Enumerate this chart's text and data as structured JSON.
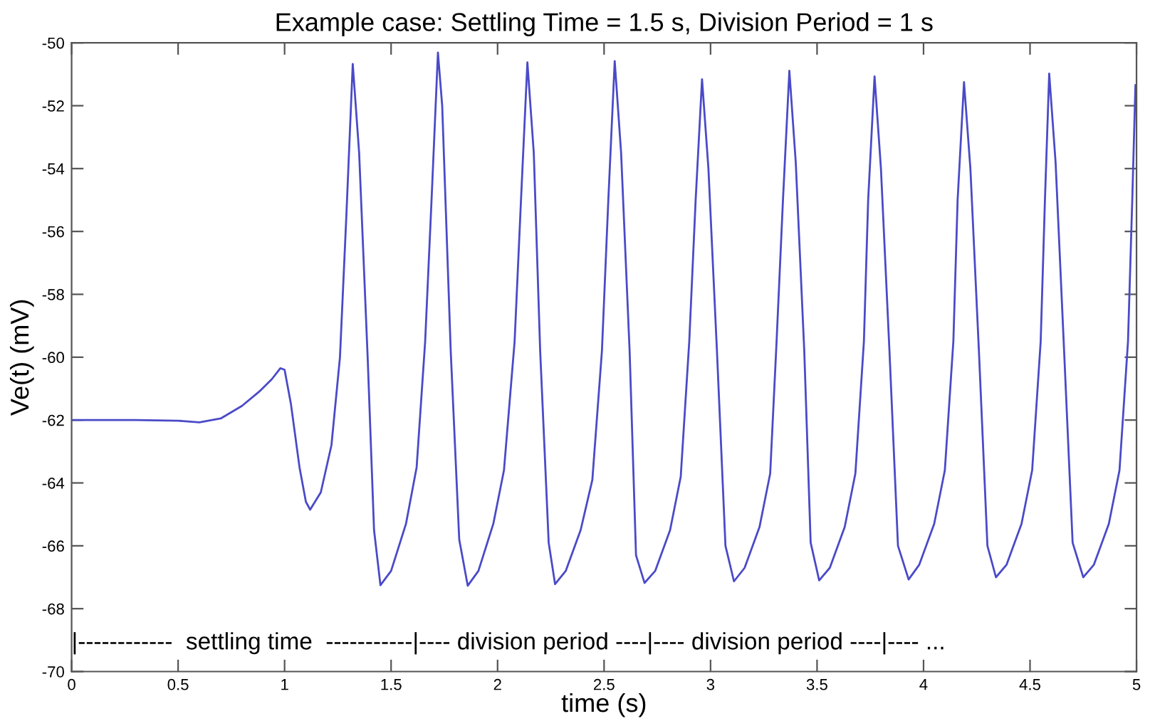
{
  "chart_data": {
    "type": "line",
    "title": "Example case: Settling Time = 1.5 s, Division Period = 1 s",
    "xlabel": "time (s)",
    "ylabel": "Ve(t) (mV)",
    "annotations": [
      "|------------  settling time  -----------|---- division period ----|---- division period ----|---- ..."
    ],
    "xlim": [
      0,
      5
    ],
    "ylim": [
      -70,
      -50
    ],
    "xticks": [
      0,
      0.5,
      1,
      1.5,
      2,
      2.5,
      3,
      3.5,
      4,
      4.5,
      5
    ],
    "yticks": [
      -70,
      -68,
      -66,
      -64,
      -62,
      -60,
      -58,
      -56,
      -54,
      -52,
      -50
    ],
    "grid": false,
    "legend": false,
    "marker": "none",
    "line_style": "solid",
    "series": [
      {
        "color": "#4a4ac8",
        "x": [
          0,
          0.3,
          0.5,
          0.6,
          0.7,
          0.8,
          0.88,
          0.94,
          0.98,
          1.0,
          1.03,
          1.07,
          1.1,
          1.12,
          1.17,
          1.22,
          1.26,
          1.29,
          1.32,
          1.35,
          1.39,
          1.42,
          1.45,
          1.5,
          1.57,
          1.62,
          1.66,
          1.69,
          1.72,
          1.74,
          1.78,
          1.82,
          1.86,
          1.91,
          1.98,
          2.03,
          2.08,
          2.11,
          2.14,
          2.17,
          2.2,
          2.24,
          2.27,
          2.32,
          2.39,
          2.445,
          2.49,
          2.52,
          2.55,
          2.58,
          2.62,
          2.65,
          2.69,
          2.74,
          2.81,
          2.86,
          2.9,
          2.93,
          2.96,
          2.99,
          3.03,
          3.07,
          3.11,
          3.16,
          3.23,
          3.28,
          3.31,
          3.34,
          3.37,
          3.4,
          3.44,
          3.47,
          3.51,
          3.56,
          3.63,
          3.68,
          3.72,
          3.74,
          3.77,
          3.8,
          3.84,
          3.88,
          3.93,
          3.98,
          4.05,
          4.1,
          4.14,
          4.16,
          4.19,
          4.22,
          4.26,
          4.3,
          4.34,
          4.39,
          4.46,
          4.51,
          4.55,
          4.57,
          4.59,
          4.62,
          4.66,
          4.7,
          4.75,
          4.8,
          4.87,
          4.92,
          4.96,
          4.98,
          4.995,
          5.0
        ],
        "values": [
          -62,
          -62,
          -62.02,
          -62.07,
          -61.95,
          -61.55,
          -61.1,
          -60.7,
          -60.35,
          -60.4,
          -61.5,
          -63.5,
          -64.6,
          -64.85,
          -64.3,
          -62.8,
          -60.0,
          -55.5,
          -50.67,
          -53.5,
          -60.0,
          -65.5,
          -67.25,
          -66.8,
          -65.3,
          -63.5,
          -59.5,
          -55,
          -50.31,
          -52,
          -59.8,
          -65.8,
          -67.27,
          -66.8,
          -65.3,
          -63.6,
          -59.5,
          -55,
          -50.62,
          -53.5,
          -59.8,
          -65.9,
          -67.22,
          -66.8,
          -65.5,
          -63.9,
          -59.8,
          -55,
          -50.58,
          -53.5,
          -59.8,
          -66.3,
          -67.18,
          -66.8,
          -65.5,
          -63.8,
          -59.5,
          -55,
          -51.16,
          -54,
          -59.8,
          -66.0,
          -67.13,
          -66.7,
          -65.4,
          -63.7,
          -59.5,
          -55,
          -50.89,
          -53.8,
          -59.8,
          -65.9,
          -67.1,
          -66.7,
          -65.4,
          -63.7,
          -59.5,
          -55,
          -51.07,
          -54,
          -59.8,
          -66,
          -67.07,
          -66.6,
          -65.3,
          -63.6,
          -59.5,
          -55,
          -51.25,
          -54,
          -59.8,
          -66,
          -67.0,
          -66.6,
          -65.3,
          -63.6,
          -59.5,
          -55,
          -50.98,
          -53.8,
          -59.8,
          -65.9,
          -67.0,
          -66.6,
          -65.3,
          -63.6,
          -59.5,
          -55,
          -51.34,
          -51.5
        ]
      }
    ]
  }
}
